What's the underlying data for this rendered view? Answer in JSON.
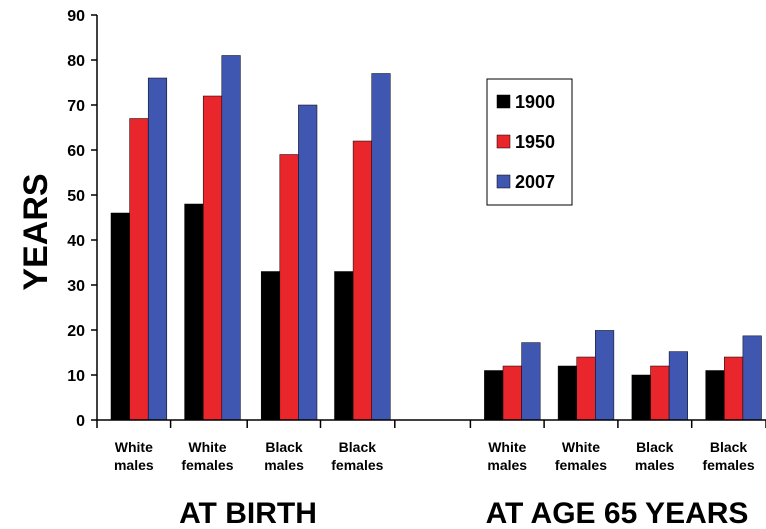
{
  "chart_data": {
    "type": "bar",
    "ylabel": "YEARS",
    "ylim": [
      0,
      90
    ],
    "yticks": [
      0,
      10,
      20,
      30,
      40,
      50,
      60,
      70,
      80,
      90
    ],
    "grid": false,
    "legend_position": "right",
    "groups": [
      {
        "label": "AT BIRTH",
        "categories": [
          [
            "White",
            "males"
          ],
          [
            "White",
            "females"
          ],
          [
            "Black",
            "males"
          ],
          [
            "Black",
            "females"
          ]
        ]
      },
      {
        "label": "AT AGE 65 YEARS",
        "categories": [
          [
            "White",
            "males"
          ],
          [
            "White",
            "females"
          ],
          [
            "Black",
            "males"
          ],
          [
            "Black",
            "females"
          ]
        ]
      }
    ],
    "series": [
      {
        "name": "1900",
        "color": "#000000",
        "values": [
          46,
          48,
          33,
          33,
          11,
          12,
          10,
          11
        ]
      },
      {
        "name": "1950",
        "color": "#e8262b",
        "values": [
          67,
          72,
          59,
          62,
          12,
          14,
          12,
          14
        ]
      },
      {
        "name": "2007",
        "color": "#3f57b0",
        "values": [
          76,
          81,
          70,
          77,
          17.2,
          19.9,
          15.2,
          18.7
        ]
      }
    ]
  }
}
